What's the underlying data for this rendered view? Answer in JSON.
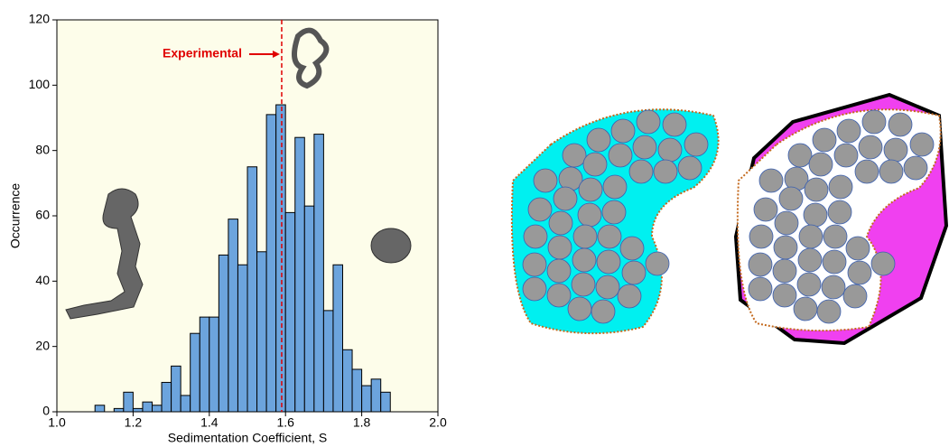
{
  "chart_data": {
    "type": "histogram",
    "xlabel": "Sedimentation Coefficient, S",
    "ylabel": "Occurrence",
    "bins": [
      1.1,
      1.125,
      1.15,
      1.175,
      1.2,
      1.225,
      1.25,
      1.275,
      1.3,
      1.325,
      1.35,
      1.375,
      1.4,
      1.425,
      1.45,
      1.475,
      1.5,
      1.525,
      1.55,
      1.575,
      1.6,
      1.625,
      1.65,
      1.675,
      1.7,
      1.725,
      1.75,
      1.775,
      1.8,
      1.825,
      1.85,
      1.875
    ],
    "values": [
      2,
      0,
      1,
      6,
      1,
      3,
      2,
      9,
      14,
      5,
      24,
      29,
      29,
      48,
      59,
      45,
      75,
      49,
      91,
      94,
      61,
      84,
      63,
      85,
      31,
      45,
      19,
      13,
      8,
      10,
      6
    ],
    "color": "#6ca4dd",
    "background": "#fdfdea",
    "xlim": [
      1.0,
      2.0
    ],
    "ylim": [
      0,
      120
    ],
    "xticks": [
      {
        "value": 1,
        "label": "1.0"
      },
      1.2,
      1.4,
      1.6,
      1.8,
      {
        "value": 2,
        "label": "2.0"
      }
    ],
    "yticks": [
      0,
      20,
      40,
      60,
      80,
      100,
      120
    ],
    "annotation": {
      "text": "Experimental",
      "x": 1.59,
      "color": "#e00000"
    }
  }
}
